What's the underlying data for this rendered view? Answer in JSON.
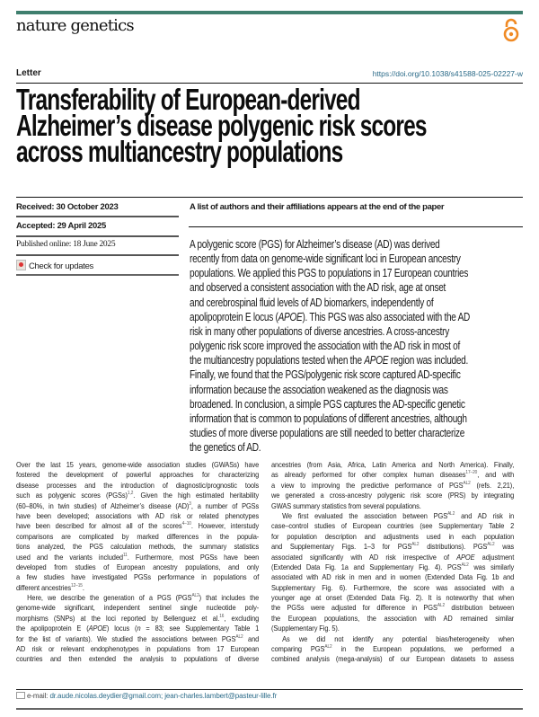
{
  "header": {
    "journal": "nature genetics",
    "open_access_icon": "open-access-lock-icon",
    "accent_color": "#3f7f6e",
    "open_access_color": "#f08a24",
    "article_type": "Letter",
    "doi": "https://doi.org/10.1038/s41588-025-02227-w"
  },
  "title_lines": [
    "Transferability of European-derived",
    "Alzheimer’s disease polygenic risk scores",
    "across multiancestry populations"
  ],
  "meta": {
    "received": "Received: 30 October 2023",
    "accepted": "Accepted: 29 April 2025",
    "published": "Published online: 18 June 2025",
    "check_updates": "Check for updates"
  },
  "authors_note": "A list of authors and their affiliations appears at the end of the paper",
  "abstract_lines": [
    [
      {
        "t": "A polygenic score (PGS) for Alzheimer’s disease (AD) was derived"
      }
    ],
    [
      {
        "t": "recently from data on genome-wide significant loci in European ancestry"
      }
    ],
    [
      {
        "t": "populations. We applied this PGS to populations in 17 European countries"
      }
    ],
    [
      {
        "t": "and observed a consistent association with the AD risk, age at onset"
      }
    ],
    [
      {
        "t": "and cerebrospinal fluid levels of AD biomarkers, independently of"
      }
    ],
    [
      {
        "t": "apolipoprotein E locus ("
      },
      {
        "t": "APOE",
        "s": "i"
      },
      {
        "t": "). This PGS was also associated with the AD"
      }
    ],
    [
      {
        "t": "risk in many other populations of diverse ancestries. A cross-ancestry"
      }
    ],
    [
      {
        "t": "polygenic risk score improved the association with the AD risk in most of"
      }
    ],
    [
      {
        "t": "the multiancestry populations tested when the "
      },
      {
        "t": "APOE",
        "s": "i"
      },
      {
        "t": " region was included."
      }
    ],
    [
      {
        "t": "Finally, we found that the PGS/polygenic risk score captured AD-specific"
      }
    ],
    [
      {
        "t": "information because the association weakened as the diagnosis was"
      }
    ],
    [
      {
        "t": "broadened. In conclusion, a simple PGS captures the AD-specific genetic"
      }
    ],
    [
      {
        "t": "information that is common to populations of different ancestries, although"
      }
    ],
    [
      {
        "t": "studies of more diverse populations are still needed to better characterize"
      }
    ],
    [
      {
        "t": "the genetics of AD."
      }
    ]
  ],
  "body_left": [
    {
      "segs": [
        {
          "t": "Over the last 15 years, genome-wide association studies (GWASs) have"
        }
      ]
    },
    {
      "segs": [
        {
          "t": "fostered the development of powerful approaches for characterizing"
        }
      ]
    },
    {
      "segs": [
        {
          "t": "disease processes and the introduction of diagnostic/prognostic tools"
        }
      ]
    },
    {
      "segs": [
        {
          "t": "such as polygenic scores (PGSs)"
        },
        {
          "t": "1,2",
          "s": "sup"
        },
        {
          "t": ". Given the high estimated heritability"
        }
      ]
    },
    {
      "segs": [
        {
          "t": "(60–80%, in twin studies) of Alzheimer’s disease (AD)"
        },
        {
          "t": "3",
          "s": "sup"
        },
        {
          "t": ", a number of PGSs"
        }
      ]
    },
    {
      "segs": [
        {
          "t": "have been developed; associations with AD risk or related phenotypes"
        }
      ]
    },
    {
      "segs": [
        {
          "t": "have been described for almost all of the scores"
        },
        {
          "t": "4–10",
          "s": "sup"
        },
        {
          "t": ". However, interstudy"
        }
      ]
    },
    {
      "segs": [
        {
          "t": "comparisons are complicated by marked differences in the popula-"
        }
      ]
    },
    {
      "segs": [
        {
          "t": "tions analyzed, the PGS calculation methods, the summary statistics"
        }
      ]
    },
    {
      "segs": [
        {
          "t": "used and the variants included"
        },
        {
          "t": "11",
          "s": "sup"
        },
        {
          "t": ". Furthermore, most PGSs have been"
        }
      ]
    },
    {
      "segs": [
        {
          "t": "developed from studies of European ancestry populations, and only"
        }
      ]
    },
    {
      "segs": [
        {
          "t": "a few studies have investigated PGSs performance in populations of"
        }
      ]
    },
    {
      "last": true,
      "segs": [
        {
          "t": "different ancestries"
        },
        {
          "t": "12–15",
          "s": "sup"
        },
        {
          "t": "."
        }
      ]
    },
    {
      "ind": true,
      "segs": [
        {
          "t": "Here, we describe the generation of a PGS (PGS"
        },
        {
          "t": "AL2",
          "s": "sup"
        },
        {
          "t": ") that includes the"
        }
      ]
    },
    {
      "segs": [
        {
          "t": "genome-wide significant, independent sentinel single nucleotide poly-"
        }
      ]
    },
    {
      "segs": [
        {
          "t": "morphisms (SNPs) at the loci reported by Bellenguez et al."
        },
        {
          "t": "16",
          "s": "sup"
        },
        {
          "t": ", excluding"
        }
      ]
    },
    {
      "segs": [
        {
          "t": "the apolipoprotein E ("
        },
        {
          "t": "APOE",
          "s": "i"
        },
        {
          "t": ") locus ("
        },
        {
          "t": "n",
          "s": "i"
        },
        {
          "t": " = 83; see Supplementary Table 1"
        }
      ]
    },
    {
      "segs": [
        {
          "t": "for the list of variants). We studied the associations between PGS"
        },
        {
          "t": "AL2",
          "s": "sup"
        },
        {
          "t": " and"
        }
      ]
    },
    {
      "segs": [
        {
          "t": "AD risk or relevant endophenotypes in populations from 17 European"
        }
      ]
    },
    {
      "segs": [
        {
          "t": "countries and then extended the analysis to populations of diverse"
        }
      ]
    }
  ],
  "body_right": [
    {
      "segs": [
        {
          "t": "ancestries (from Asia, Africa, Latin America and North America). Finally,"
        }
      ]
    },
    {
      "segs": [
        {
          "t": "as already performed for other complex human diseases"
        },
        {
          "t": "17–20",
          "s": "sup"
        },
        {
          "t": ", and with"
        }
      ]
    },
    {
      "segs": [
        {
          "t": "a view to improving the predictive performance of PGS"
        },
        {
          "t": "AL2",
          "s": "sup"
        },
        {
          "t": " (refs. 2,21),"
        }
      ]
    },
    {
      "segs": [
        {
          "t": "we generated a cross-ancestry polygenic risk score (PRS) by integrating"
        }
      ]
    },
    {
      "last": true,
      "segs": [
        {
          "t": "GWAS summary statistics from several populations."
        }
      ]
    },
    {
      "ind": true,
      "segs": [
        {
          "t": "We first evaluated the association between PGS"
        },
        {
          "t": "AL2",
          "s": "sup"
        },
        {
          "t": " and AD risk in"
        }
      ]
    },
    {
      "segs": [
        {
          "t": "case–control studies of European countries (see Supplementary Table 2"
        }
      ]
    },
    {
      "segs": [
        {
          "t": "for population description and adjustments used in each population"
        }
      ]
    },
    {
      "segs": [
        {
          "t": "and Supplementary Figs. 1–3 for PGS"
        },
        {
          "t": "AL2",
          "s": "sup"
        },
        {
          "t": " distributions). PGS"
        },
        {
          "t": "AL2",
          "s": "sup"
        },
        {
          "t": " was"
        }
      ]
    },
    {
      "segs": [
        {
          "t": "associated significantly with AD risk irrespective of "
        },
        {
          "t": "APOE",
          "s": "i"
        },
        {
          "t": " adjustment"
        }
      ]
    },
    {
      "segs": [
        {
          "t": "(Extended Data Fig. 1a and Supplementary Fig. 4). PGS"
        },
        {
          "t": "AL2",
          "s": "sup"
        },
        {
          "t": " was similarly"
        }
      ]
    },
    {
      "segs": [
        {
          "t": "associated with AD risk in men and in women (Extended Data Fig. 1b and"
        }
      ]
    },
    {
      "segs": [
        {
          "t": "Supplementary Fig. 6). Furthermore, the score was associated with a"
        }
      ]
    },
    {
      "segs": [
        {
          "t": "younger age at onset (Extended Data Fig. 2). It is noteworthy that when"
        }
      ]
    },
    {
      "segs": [
        {
          "t": "the PGSs were adjusted for difference in PGS"
        },
        {
          "t": "AL2",
          "s": "sup"
        },
        {
          "t": " distribution between"
        }
      ]
    },
    {
      "segs": [
        {
          "t": "the European populations, the association with AD remained similar"
        }
      ]
    },
    {
      "last": true,
      "segs": [
        {
          "t": "(Supplementary Fig. 5)."
        }
      ]
    },
    {
      "ind": true,
      "segs": [
        {
          "t": "As we did not identify any potential bias/heterogeneity when"
        }
      ]
    },
    {
      "segs": [
        {
          "t": "comparing PGS"
        },
        {
          "t": "AL2",
          "s": "sup"
        },
        {
          "t": " in the European populations, we performed a"
        }
      ]
    },
    {
      "segs": [
        {
          "t": "combined analysis (mega-analysis) of our European datasets to assess"
        }
      ]
    }
  ],
  "footer": {
    "email_label": "e-mail: ",
    "emails": "dr.aude.nicolas.deydier@gmail.com; jean-charles.lambert@pasteur-lille.fr"
  }
}
